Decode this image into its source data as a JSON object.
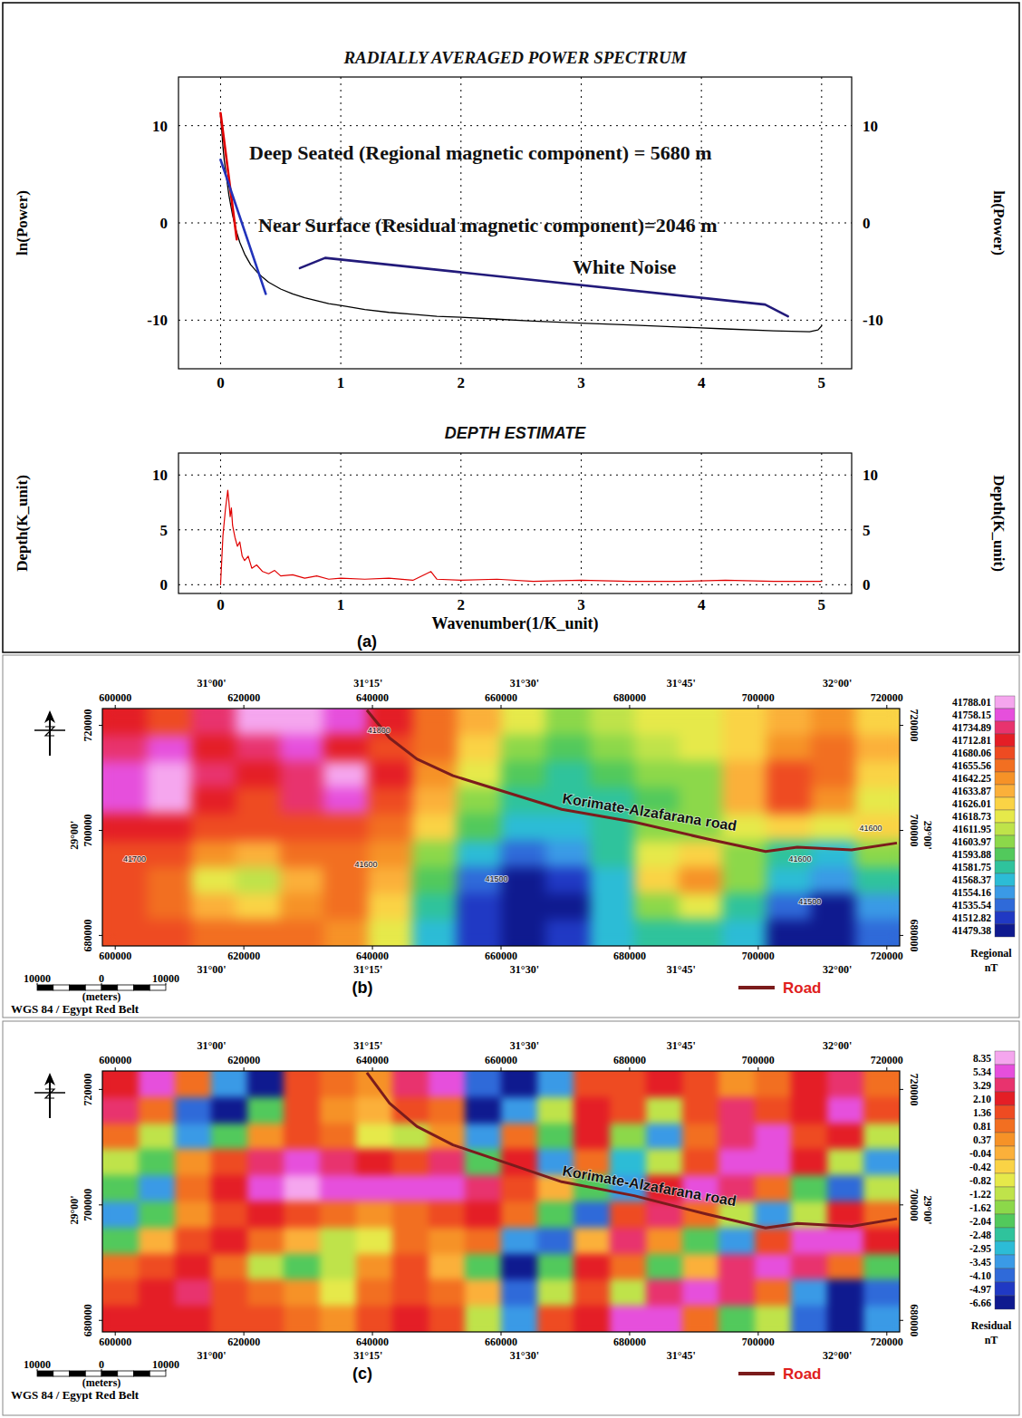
{
  "chart_data": [
    {
      "type": "line",
      "title": "RADIALLY AVERAGED POWER SPECTRUM",
      "ylabel": "ln(Power)",
      "xlim": [
        -0.35,
        5.25
      ],
      "ylim": [
        -15,
        15
      ],
      "xticks": [
        0,
        1,
        2,
        3,
        4,
        5
      ],
      "yticks": [
        -10,
        0,
        10
      ],
      "grid": true,
      "series": [
        {
          "color": "#000000",
          "x": [
            0,
            0.01,
            0.02,
            0.03,
            0.05,
            0.07,
            0.1,
            0.13,
            0.16,
            0.2,
            0.25,
            0.3,
            0.35,
            0.4,
            0.5,
            0.6,
            0.7,
            0.8,
            0.9,
            1.0,
            1.2,
            1.4,
            1.6,
            1.8,
            2.0,
            2.3,
            2.6,
            3.0,
            3.4,
            3.8,
            4.2,
            4.6,
            4.9,
            4.97,
            5.0
          ],
          "values": [
            11,
            9.5,
            7.8,
            6.5,
            4.6,
            2.8,
            0.8,
            -0.8,
            -2.0,
            -3.2,
            -4.3,
            -5.0,
            -5.6,
            -6.1,
            -6.8,
            -7.3,
            -7.7,
            -8.0,
            -8.3,
            -8.5,
            -8.9,
            -9.2,
            -9.4,
            -9.6,
            -9.7,
            -9.9,
            -10.1,
            -10.3,
            -10.5,
            -10.7,
            -10.9,
            -11.1,
            -11.2,
            -11.0,
            -10.6
          ]
        },
        {
          "name": "Deep Seated (Regional magnetic component) = 5680 m",
          "color": "#e00000",
          "x": [
            0,
            0.135
          ],
          "values": [
            11.3,
            -1.7
          ]
        },
        {
          "name": "Near Surface (Residual magnetic component)=2046 m",
          "color": "#2233bb",
          "x": [
            0,
            0.376
          ],
          "values": [
            6.5,
            -7.3
          ]
        },
        {
          "name": "White Noise",
          "color": "#221a7a",
          "x": [
            0.66,
            0.87,
            4.53,
            4.72
          ],
          "values": [
            -4.65,
            -3.6,
            -8.4,
            -9.6
          ]
        }
      ]
    },
    {
      "type": "line",
      "title": "DEPTH ESTIMATE",
      "xlabel": "Wavenumber(1/K_unit)",
      "ylabel": "Depth(K_unit)",
      "panel_label": "(a)",
      "xlim": [
        -0.35,
        5.25
      ],
      "ylim": [
        -0.8,
        12
      ],
      "xticks": [
        0,
        1,
        2,
        3,
        4,
        5
      ],
      "yticks": [
        0,
        5,
        10
      ],
      "grid": true,
      "series": [
        {
          "color": "#e00000",
          "x": [
            0,
            0.02,
            0.04,
            0.06,
            0.07,
            0.08,
            0.09,
            0.1,
            0.12,
            0.14,
            0.16,
            0.18,
            0.2,
            0.23,
            0.26,
            0.3,
            0.35,
            0.4,
            0.45,
            0.5,
            0.6,
            0.7,
            0.8,
            0.9,
            1.0,
            1.2,
            1.4,
            1.6,
            1.75,
            1.8,
            2.0,
            2.3,
            2.6,
            3.0,
            3.4,
            3.8,
            4.2,
            4.6,
            5.0
          ],
          "values": [
            0,
            4.5,
            6.8,
            8.6,
            7.5,
            6.2,
            7.0,
            5.4,
            4.3,
            3.5,
            3.9,
            2.6,
            2.2,
            2.6,
            1.5,
            1.8,
            1.2,
            1.0,
            1.3,
            0.8,
            0.9,
            0.6,
            0.8,
            0.5,
            0.6,
            0.5,
            0.6,
            0.4,
            1.2,
            0.5,
            0.4,
            0.5,
            0.3,
            0.4,
            0.3,
            0.3,
            0.4,
            0.3,
            0.3
          ]
        }
      ]
    },
    {
      "type": "heatmap",
      "panel_label": "(b)",
      "xlim": [
        598000,
        722000
      ],
      "ylim": [
        678000,
        723200
      ],
      "xticks": [
        600000,
        620000,
        640000,
        660000,
        680000,
        700000,
        720000
      ],
      "yticks": [
        680000,
        700000,
        720000
      ],
      "x2ticks": [
        {
          "value": 615000,
          "label": "31°00'"
        },
        {
          "value": 639330,
          "label": "31°15'"
        },
        {
          "value": 663650,
          "label": "31°30'"
        },
        {
          "value": 688000,
          "label": "31°45'"
        },
        {
          "value": 712300,
          "label": "32°00'"
        }
      ],
      "y2ticks": [
        {
          "value": 699100,
          "label": "29°00'"
        }
      ],
      "x": [
        601444,
        608333,
        615222,
        622111,
        629000,
        635889,
        642778,
        649667,
        656556,
        663444,
        670333,
        677222,
        684111,
        691000,
        697889,
        704778,
        711667,
        718556
      ],
      "y": [
        720689,
        715667,
        710644,
        705622,
        700600,
        695578,
        690556,
        685533,
        680511
      ],
      "values": [
        [
          41730,
          41710,
          41740,
          41790,
          41810,
          41780,
          41730,
          41680,
          41640,
          41620,
          41610,
          41615,
          41620,
          41625,
          41630,
          41640,
          41650,
          41630
        ],
        [
          41740,
          41760,
          41720,
          41740,
          41760,
          41720,
          41700,
          41660,
          41630,
          41610,
          41600,
          41605,
          41615,
          41620,
          41630,
          41650,
          41660,
          41640
        ],
        [
          41780,
          41800,
          41740,
          41720,
          41750,
          41790,
          41720,
          41650,
          41620,
          41600,
          41590,
          41595,
          41605,
          41610,
          41640,
          41700,
          41660,
          41630
        ],
        [
          41760,
          41790,
          41730,
          41700,
          41740,
          41780,
          41700,
          41640,
          41610,
          41590,
          41585,
          41590,
          41600,
          41610,
          41640,
          41690,
          41650,
          41620
        ],
        [
          41720,
          41730,
          41710,
          41690,
          41700,
          41700,
          41670,
          41630,
          41600,
          41580,
          41580,
          41590,
          41605,
          41610,
          41620,
          41630,
          41620,
          41630
        ],
        [
          41700,
          41690,
          41650,
          41640,
          41660,
          41680,
          41650,
          41610,
          41570,
          41540,
          41560,
          41590,
          41620,
          41630,
          41610,
          41590,
          41580,
          41610
        ],
        [
          41690,
          41660,
          41620,
          41615,
          41640,
          41670,
          41640,
          41600,
          41540,
          41490,
          41530,
          41580,
          41630,
          41645,
          41610,
          41570,
          41560,
          41590
        ],
        [
          41700,
          41680,
          41640,
          41630,
          41650,
          41660,
          41630,
          41590,
          41520,
          41470,
          41510,
          41570,
          41610,
          41620,
          41590,
          41540,
          41510,
          41560
        ],
        [
          41710,
          41700,
          41670,
          41660,
          41660,
          41650,
          41620,
          41580,
          41530,
          41500,
          41530,
          41570,
          41590,
          41590,
          41570,
          41500,
          41480,
          41540
        ]
      ],
      "colorbar": {
        "label": "Regional",
        "unit": "nT",
        "ticks": [
          41788.01,
          41758.15,
          41734.89,
          41712.81,
          41680.06,
          41655.56,
          41642.25,
          41633.87,
          41626.01,
          41618.73,
          41611.95,
          41603.97,
          41593.88,
          41581.75,
          41568.37,
          41554.16,
          41535.54,
          41512.82,
          41479.38
        ],
        "colors": [
          "#f5a6ee",
          "#e64fdc",
          "#e8336e",
          "#e41e26",
          "#ee4b22",
          "#f26f21",
          "#f69227",
          "#fbb03a",
          "#fad345",
          "#e6e94a",
          "#bfe34a",
          "#8cd84a",
          "#52c95c",
          "#2fc39c",
          "#2cbcd6",
          "#3a9ae6",
          "#2f6ad9",
          "#2039c4",
          "#0f1a8f"
        ]
      },
      "contour_labels": [
        {
          "value": 41800,
          "x": 641000,
          "y": 719000
        },
        {
          "value": 41700,
          "x": 603000,
          "y": 694500
        },
        {
          "value": 41600,
          "x": 639000,
          "y": 693500
        },
        {
          "value": 41500,
          "x": 659300,
          "y": 690700
        },
        {
          "value": 41600,
          "x": 706500,
          "y": 694500
        },
        {
          "value": 41500,
          "x": 708000,
          "y": 686400
        },
        {
          "value": 41600,
          "x": 717500,
          "y": 700500
        }
      ],
      "road": {
        "name": "Korimate-Alzafarana road",
        "legend": "Road",
        "color": "#7b1c1c",
        "x": [
          639140,
          642670,
          646900,
          652530,
          660980,
          669440,
          680710,
          691980,
          701140,
          706070,
          714520,
          721570
        ],
        "y": [
          722900,
          717600,
          713600,
          710400,
          707200,
          704000,
          701600,
          698400,
          696000,
          696800,
          696300,
          697600
        ]
      },
      "scale_bar": {
        "ticks": [
          {
            "value": -10000,
            "label": "10000"
          },
          0,
          10000
        ],
        "unit": "(meters)"
      },
      "projection": "WGS 84 / Egypt Red Belt"
    },
    {
      "type": "heatmap",
      "panel_label": "(c)",
      "xlim": [
        598000,
        722000
      ],
      "ylim": [
        678000,
        723200
      ],
      "xticks": [
        600000,
        620000,
        640000,
        660000,
        680000,
        700000,
        720000
      ],
      "yticks": [
        680000,
        700000,
        720000
      ],
      "x2ticks": [
        {
          "value": 615000,
          "label": "31°00'"
        },
        {
          "value": 639330,
          "label": "31°15'"
        },
        {
          "value": 663650,
          "label": "31°30'"
        },
        {
          "value": 688000,
          "label": "31°45'"
        },
        {
          "value": 712300,
          "label": "32°00'"
        }
      ],
      "y2ticks": [
        {
          "value": 699100,
          "label": "29°00'"
        }
      ],
      "x": [
        600818,
        606455,
        612091,
        617727,
        623364,
        629000,
        634636,
        640273,
        645909,
        651545,
        657182,
        662818,
        668455,
        674091,
        679727,
        685364,
        691000,
        696636,
        702273,
        707909,
        713545,
        719182
      ],
      "y": [
        720940,
        716420,
        711900,
        707380,
        702860,
        698340,
        693820,
        689300,
        684780,
        680260
      ],
      "values": [
        [
          3,
          6,
          1,
          -3,
          -5,
          2,
          1,
          0.5,
          4,
          6,
          -4,
          -5,
          -3,
          2,
          1.5,
          3,
          2,
          0.5,
          1,
          2.5,
          3.5,
          1
        ],
        [
          5,
          1,
          -4,
          -6,
          -2,
          1.5,
          0.8,
          0.3,
          2,
          1,
          -5,
          -3,
          -1,
          3,
          2,
          -1,
          1.5,
          4,
          2,
          3,
          6,
          2
        ],
        [
          1,
          -1,
          -3,
          -2,
          0.5,
          2,
          1.2,
          -0.5,
          -1,
          0.5,
          -3,
          1,
          -2,
          2.5,
          -1.5,
          -3,
          1,
          5,
          7,
          2,
          3,
          -1
        ],
        [
          -1,
          -2,
          0.5,
          2,
          4,
          6,
          5,
          3,
          2,
          4,
          -2,
          3,
          -3,
          1,
          -2.5,
          -1,
          2,
          6,
          8,
          3,
          -1,
          -3
        ],
        [
          -2,
          -3,
          1,
          3,
          7,
          9,
          8,
          8,
          7,
          6,
          5,
          2,
          0,
          -2,
          -3,
          3,
          6,
          4,
          1,
          -2,
          -4,
          -1
        ],
        [
          -3,
          -2,
          0.5,
          2,
          3,
          2,
          1,
          0.5,
          1,
          2,
          3,
          1,
          -2,
          -3.5,
          2,
          5,
          1,
          -1,
          -3,
          -1,
          3,
          1
        ],
        [
          -2,
          0,
          2,
          3,
          1,
          0,
          -1,
          -0.5,
          1,
          0.4,
          1,
          -3,
          -4,
          0,
          4,
          0.5,
          -2,
          -3,
          2,
          6,
          8,
          3
        ],
        [
          1,
          2,
          3,
          1,
          -1,
          -2,
          -1,
          0.5,
          1.5,
          0,
          -2,
          -5,
          -2,
          3,
          1,
          -2,
          0,
          4,
          8,
          5,
          1,
          -2
        ],
        [
          2,
          3,
          3.5,
          2,
          1,
          0.5,
          -0.5,
          1,
          2,
          1,
          0,
          -4,
          -1,
          2,
          -1,
          4,
          8,
          5,
          1,
          -3,
          -5,
          -4
        ],
        [
          3,
          2.5,
          3,
          2,
          1.5,
          1,
          0.5,
          1.5,
          2.5,
          1.5,
          -1,
          -3,
          2,
          3,
          7,
          6,
          1,
          -2,
          -1,
          -4,
          -6,
          -3
        ]
      ],
      "colorbar": {
        "label": "Residual",
        "unit": "nT",
        "ticks": [
          8.35,
          5.34,
          3.29,
          {
            "value": 2.1,
            "label": "2.10"
          },
          1.36,
          0.81,
          0.37,
          -0.04,
          -0.42,
          -0.82,
          -1.22,
          -1.62,
          -2.04,
          -2.48,
          -2.95,
          -3.45,
          {
            "value": -4.1,
            "label": "-4.10"
          },
          -4.97,
          -6.66
        ],
        "colors": [
          "#f5a6ee",
          "#e64fdc",
          "#e8336e",
          "#e41e26",
          "#ee4b22",
          "#f26f21",
          "#f69227",
          "#fbb03a",
          "#fad345",
          "#e6e94a",
          "#bfe34a",
          "#8cd84a",
          "#52c95c",
          "#2fc39c",
          "#2cbcd6",
          "#3a9ae6",
          "#2f6ad9",
          "#2039c4",
          "#0f1a8f"
        ]
      },
      "road": {
        "name": "Korimate-Alzafarana road",
        "legend": "Road",
        "color": "#7b1c1c",
        "x": [
          639140,
          642670,
          646900,
          652530,
          660980,
          669440,
          680710,
          691980,
          701140,
          706070,
          714520,
          721570
        ],
        "y": [
          722900,
          717600,
          713600,
          710400,
          707200,
          704000,
          701600,
          698400,
          696000,
          696800,
          696300,
          697600
        ]
      },
      "scale_bar": {
        "ticks": [
          {
            "value": -10000,
            "label": "10000"
          },
          0,
          10000
        ],
        "unit": "(meters)"
      },
      "projection": "WGS 84 / Egypt Red Belt"
    }
  ]
}
